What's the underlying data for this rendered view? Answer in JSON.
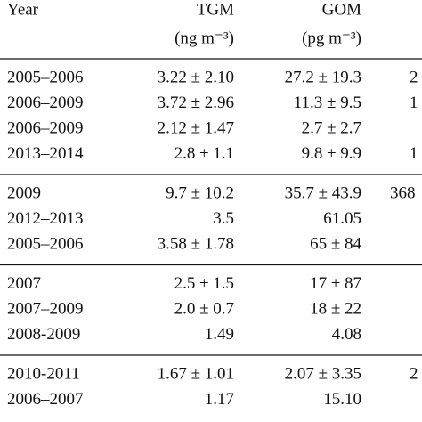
{
  "table": {
    "header": [
      "Year",
      "TGM",
      "GOM"
    ],
    "units": [
      null,
      "(ng m⁻³)",
      "(pg m⁻³)"
    ],
    "groups": [
      [
        [
          "2005–2006",
          "3.22 ± 2.10",
          "27.2 ± 19.3",
          "2"
        ],
        [
          "2006–2009",
          "3.72 ± 2.96",
          "11.3 ± 9.5",
          "1"
        ],
        [
          "2006–2009",
          "2.12 ± 1.47",
          "2.7 ± 2.7"
        ],
        [
          "2013–2014",
          "2.8 ± 1.1",
          "9.8 ± 9.9",
          "1"
        ]
      ],
      [
        [
          "2009",
          "9.7 ± 10.2",
          "35.7 ± 43.9",
          "368"
        ],
        [
          "2012–2013",
          "3.5",
          "61.05"
        ],
        [
          "2005–2006",
          "3.58 ± 1.78",
          "65 ± 84"
        ]
      ],
      [
        [
          "2007",
          "2.5 ± 1.5",
          "17 ± 87"
        ],
        [
          "2007–2009",
          "2.0 ± 0.7",
          "18 ± 22"
        ],
        [
          "2008-2009",
          "1.49",
          "4.08"
        ]
      ],
      [
        [
          "2010-2011",
          "1.67 ± 1.01",
          "2.07 ± 3.35",
          "2"
        ],
        [
          "2006–2007",
          "1.17",
          "15.10"
        ]
      ]
    ]
  }
}
